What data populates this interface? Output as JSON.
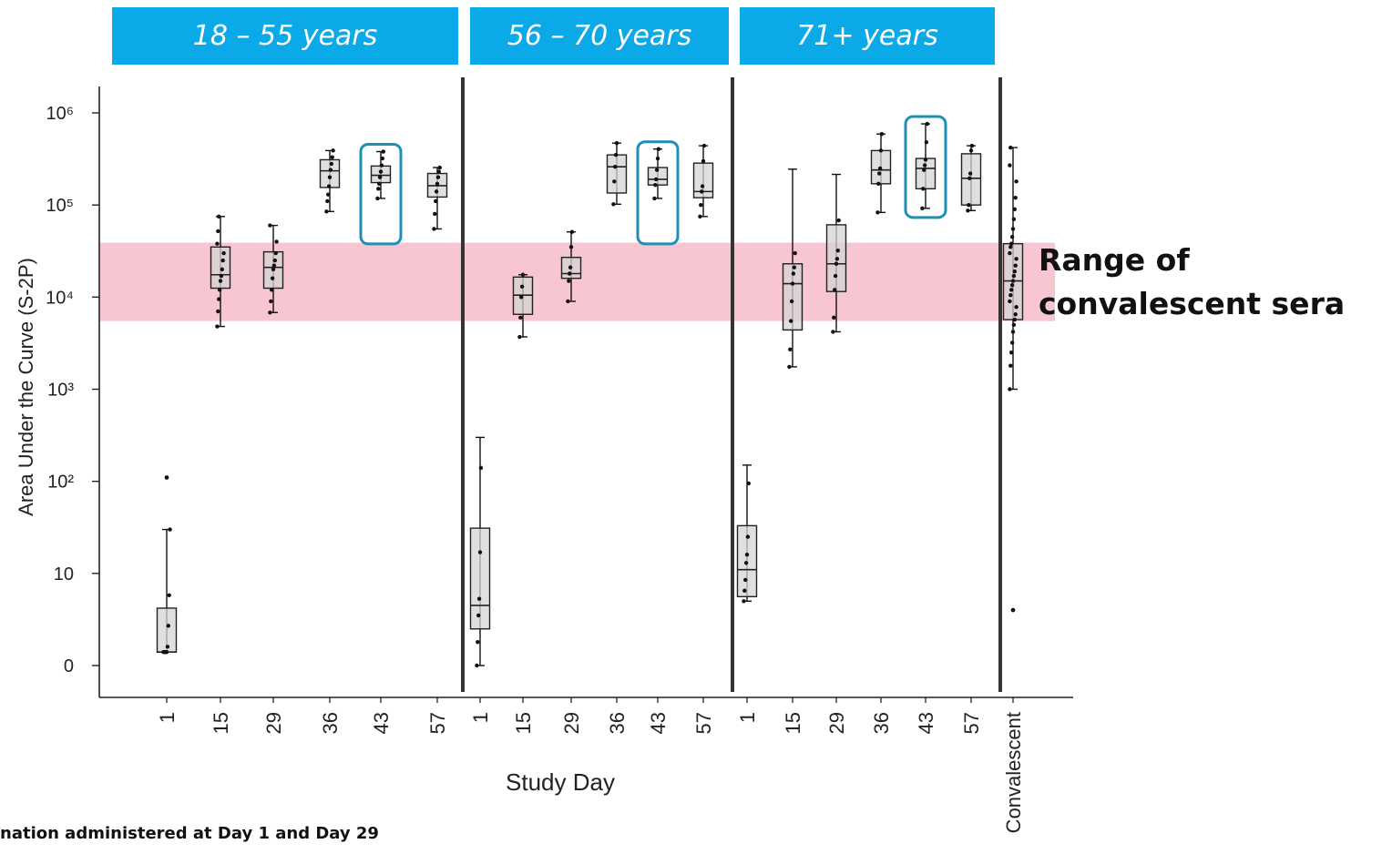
{
  "groups": [
    {
      "label": "18 – 55 years"
    },
    {
      "label": "56 – 70 years"
    },
    {
      "label": "71+ years"
    }
  ],
  "band_label": [
    "Range of",
    "convalescent sera"
  ],
  "footnote": "nation administered at Day 1 and Day 29",
  "colors": {
    "header": "#0ba9e8",
    "box_fill": "#d4d4d4",
    "band": "#f7c6d1",
    "highlight": "#1e8fb5",
    "axis": "#222222"
  },
  "chart_data": {
    "type": "box",
    "ylabel": "Area Under the Curve (S-2P)",
    "xlabel": "Study Day",
    "yscale": "log",
    "yticks": [
      {
        "value": 1,
        "label": "0"
      },
      {
        "value": 10,
        "label": "10"
      },
      {
        "value": 100,
        "label": "10²"
      },
      {
        "value": 1000,
        "label": "10³"
      },
      {
        "value": 10000,
        "label": "10⁴"
      },
      {
        "value": 100000,
        "label": "10⁵"
      },
      {
        "value": 1000000,
        "label": "10⁶"
      }
    ],
    "band": {
      "label": "Range of convalescent sera",
      "low": 5500,
      "high": 39000
    },
    "groups": [
      {
        "name": "18 – 55 years",
        "boxes": [
          {
            "day": "1",
            "whislo": 1.4,
            "q1": 1.4,
            "med": 1.4,
            "q3": 4.2,
            "whishi": 30,
            "fliers": [
              110
            ],
            "points": [
              1.4,
              1.4,
              1.4,
              1.4,
              1.4,
              1.6,
              2.7,
              5.8,
              30
            ]
          },
          {
            "day": "15",
            "whislo": 4800,
            "q1": 12500,
            "med": 17500,
            "q3": 35000,
            "whishi": 75000,
            "fliers": [],
            "points": [
              4800,
              7000,
              9500,
              12000,
              15000,
              17000,
              20000,
              25000,
              30000,
              38000,
              52000,
              75000
            ]
          },
          {
            "day": "29",
            "whislo": 6800,
            "q1": 12500,
            "med": 21000,
            "q3": 31000,
            "whishi": 60000,
            "fliers": [],
            "points": [
              6800,
              9000,
              12000,
              16000,
              20000,
              22000,
              25000,
              30000,
              40000,
              60000
            ]
          },
          {
            "day": "36",
            "whislo": 85000,
            "q1": 155000,
            "med": 235000,
            "q3": 310000,
            "whishi": 390000,
            "fliers": [],
            "points": [
              85000,
              110000,
              130000,
              160000,
              200000,
              240000,
              280000,
              330000,
              390000
            ]
          },
          {
            "day": "43",
            "whislo": 118000,
            "q1": 175000,
            "med": 210000,
            "q3": 265000,
            "whishi": 380000,
            "fliers": [],
            "points": [
              118000,
              150000,
              170000,
              200000,
              230000,
              270000,
              320000,
              380000
            ],
            "highlight": true
          },
          {
            "day": "57",
            "whislo": 55000,
            "q1": 122000,
            "med": 162000,
            "q3": 220000,
            "whishi": 255000,
            "fliers": [],
            "points": [
              55000,
              80000,
              110000,
              140000,
              170000,
              200000,
              230000,
              255000
            ]
          }
        ]
      },
      {
        "name": "56 – 70 years",
        "boxes": [
          {
            "day": "1",
            "whislo": 1.0,
            "q1": 2.5,
            "med": 4.5,
            "q3": 31,
            "whishi": 300,
            "fliers": [],
            "points": [
              1.0,
              1.8,
              3.5,
              5.3,
              17,
              140
            ]
          },
          {
            "day": "15",
            "whislo": 3700,
            "q1": 6500,
            "med": 10500,
            "q3": 16500,
            "whishi": 17500,
            "fliers": [],
            "points": [
              3700,
              6000,
              10000,
              13000,
              17500
            ]
          },
          {
            "day": "29",
            "whislo": 9000,
            "q1": 16000,
            "med": 18000,
            "q3": 27000,
            "whishi": 51000,
            "fliers": [],
            "points": [
              9000,
              15000,
              18000,
              21000,
              35000,
              51000
            ]
          },
          {
            "day": "36",
            "whislo": 102000,
            "q1": 135000,
            "med": 260000,
            "q3": 350000,
            "whishi": 470000,
            "fliers": [],
            "points": [
              102000,
              180000,
              260000,
              350000,
              470000
            ]
          },
          {
            "day": "43",
            "whislo": 118000,
            "q1": 165000,
            "med": 190000,
            "q3": 255000,
            "whishi": 405000,
            "fliers": [],
            "points": [
              118000,
              165000,
              190000,
              240000,
              320000,
              405000
            ],
            "highlight": true
          },
          {
            "day": "57",
            "whislo": 75000,
            "q1": 120000,
            "med": 140000,
            "q3": 285000,
            "whishi": 440000,
            "fliers": [],
            "points": [
              75000,
              100000,
              140000,
              160000,
              300000,
              440000
            ]
          }
        ]
      },
      {
        "name": "71+ years",
        "boxes": [
          {
            "day": "1",
            "whislo": 5.0,
            "q1": 5.6,
            "med": 11,
            "q3": 33,
            "whishi": 150,
            "fliers": [],
            "points": [
              5.0,
              6.5,
              8.5,
              13,
              16,
              25,
              95
            ]
          },
          {
            "day": "15",
            "whislo": 1750,
            "q1": 4400,
            "med": 14000,
            "q3": 23000,
            "whishi": 245000,
            "fliers": [],
            "points": [
              1750,
              2700,
              5500,
              9000,
              14000,
              18000,
              21000,
              30000
            ]
          },
          {
            "day": "29",
            "whislo": 4200,
            "q1": 11500,
            "med": 23000,
            "q3": 61000,
            "whishi": 215000,
            "fliers": [],
            "points": [
              4200,
              6000,
              12000,
              17000,
              23000,
              26000,
              32000,
              68000
            ]
          },
          {
            "day": "36",
            "whislo": 83000,
            "q1": 170000,
            "med": 240000,
            "q3": 390000,
            "whishi": 590000,
            "fliers": [],
            "points": [
              83000,
              170000,
              220000,
              250000,
              390000,
              590000
            ]
          },
          {
            "day": "43",
            "whislo": 92000,
            "q1": 150000,
            "med": 250000,
            "q3": 320000,
            "whishi": 760000,
            "fliers": [],
            "points": [
              92000,
              150000,
              240000,
              270000,
              310000,
              480000,
              760000
            ],
            "highlight": true
          },
          {
            "day": "57",
            "whislo": 87000,
            "q1": 100000,
            "med": 195000,
            "q3": 360000,
            "whishi": 440000,
            "fliers": [],
            "points": [
              87000,
              100000,
              195000,
              220000,
              390000,
              440000
            ]
          }
        ]
      },
      {
        "name": "",
        "boxes": [
          {
            "day": "Convalescent",
            "whislo": 1000,
            "q1": 5700,
            "med": 15000,
            "q3": 38000,
            "whishi": 420000,
            "fliers": [
              4
            ],
            "points": [
              1000,
              1800,
              2500,
              3200,
              4200,
              5000,
              5700,
              6500,
              7800,
              9000,
              10500,
              12000,
              13500,
              15000,
              17000,
              19000,
              22000,
              26000,
              30000,
              35000,
              38000,
              45000,
              55000,
              70000,
              90000,
              120000,
              180000,
              270000,
              420000
            ]
          }
        ]
      }
    ]
  }
}
